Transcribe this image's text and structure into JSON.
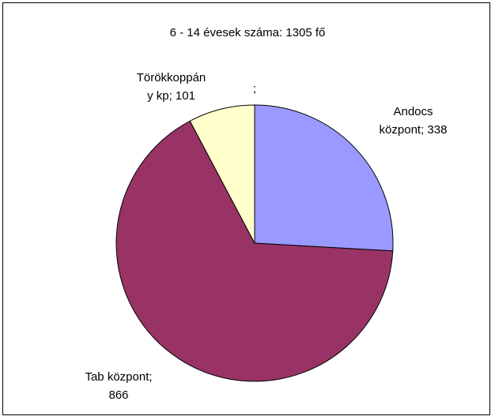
{
  "chart_data": {
    "type": "pie",
    "title": "6 - 14 évesek száma: 1305 fő",
    "categories": [
      "Andocs központ",
      "Tab központ",
      "Törökkoppány kp",
      null
    ],
    "values": [
      338,
      866,
      101,
      null
    ],
    "value_labels": [
      "Andocs központ; 338",
      "Tab központ; 866",
      "Törökkoppány kp; 101",
      ";"
    ],
    "colors": [
      "#9999ff",
      "#993366",
      "#ffffcc",
      "#ffffff"
    ]
  }
}
